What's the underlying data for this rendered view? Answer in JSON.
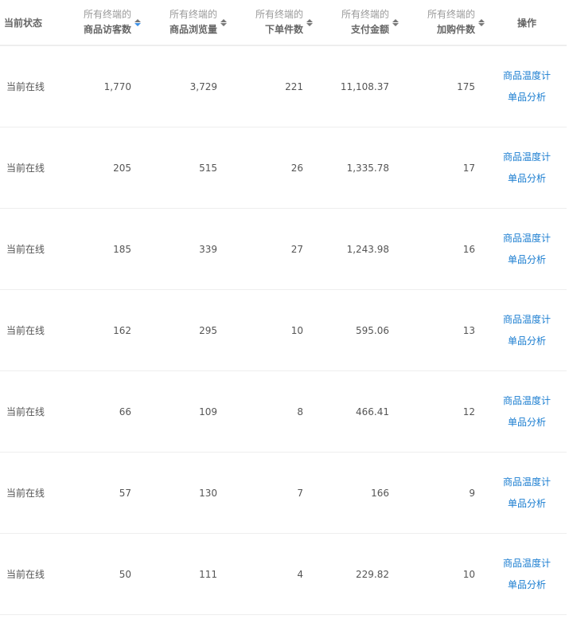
{
  "header": {
    "status": "当前状态",
    "prefix": "所有终端的",
    "columns": [
      "商品访客数",
      "商品浏览量",
      "下单件数",
      "支付金额",
      "加购件数"
    ],
    "action": "操作"
  },
  "colors": {
    "link": "#1a7dd0",
    "active_sort": "#3c8fe6"
  },
  "rows": [
    {
      "status": "当前在线",
      "values": [
        "1,770",
        "3,729",
        "221",
        "11,108.37",
        "175"
      ],
      "links": [
        "商品温度计",
        "单品分析"
      ]
    },
    {
      "status": "当前在线",
      "values": [
        "205",
        "515",
        "26",
        "1,335.78",
        "17"
      ],
      "links": [
        "商品温度计",
        "单品分析"
      ]
    },
    {
      "status": "当前在线",
      "values": [
        "185",
        "339",
        "27",
        "1,243.98",
        "16"
      ],
      "links": [
        "商品温度计",
        "单品分析"
      ]
    },
    {
      "status": "当前在线",
      "values": [
        "162",
        "295",
        "10",
        "595.06",
        "13"
      ],
      "links": [
        "商品温度计",
        "单品分析"
      ]
    },
    {
      "status": "当前在线",
      "values": [
        "66",
        "109",
        "8",
        "466.41",
        "12"
      ],
      "links": [
        "商品温度计",
        "单品分析"
      ]
    },
    {
      "status": "当前在线",
      "values": [
        "57",
        "130",
        "7",
        "166",
        "9"
      ],
      "links": [
        "商品温度计",
        "单品分析"
      ]
    },
    {
      "status": "当前在线",
      "values": [
        "50",
        "111",
        "4",
        "229.82",
        "10"
      ],
      "links": [
        "商品温度计",
        "单品分析"
      ]
    }
  ]
}
